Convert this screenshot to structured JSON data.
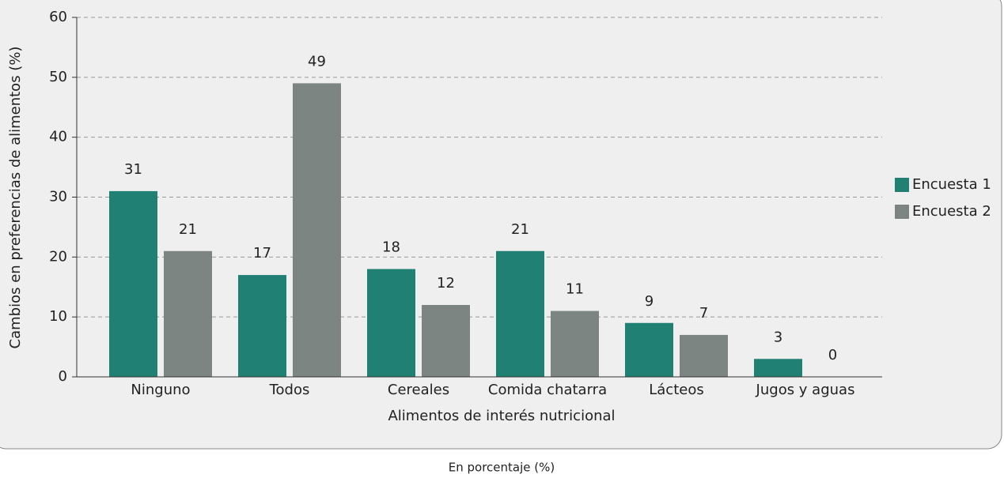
{
  "chart_data": {
    "type": "bar",
    "categories": [
      "Ninguno",
      "Todos",
      "Cereales",
      "Comida chatarra",
      "Lácteos",
      "Jugos y aguas"
    ],
    "series": [
      {
        "name": "Encuesta 1",
        "color": "#218074",
        "values": [
          31,
          17,
          18,
          21,
          9,
          3
        ]
      },
      {
        "name": "Encuesta 2",
        "color": "#7d8583",
        "values": [
          21,
          49,
          12,
          11,
          7,
          0
        ]
      }
    ],
    "ylim": [
      0,
      60
    ],
    "yticks": [
      0,
      10,
      20,
      30,
      40,
      50,
      60
    ],
    "grid": true,
    "xlabel": "Alimentos de interés nutricional",
    "ylabel": "Cambios en preferencias de alimentos (%)",
    "legend": "right",
    "caption": "En porcentaje (%)"
  }
}
